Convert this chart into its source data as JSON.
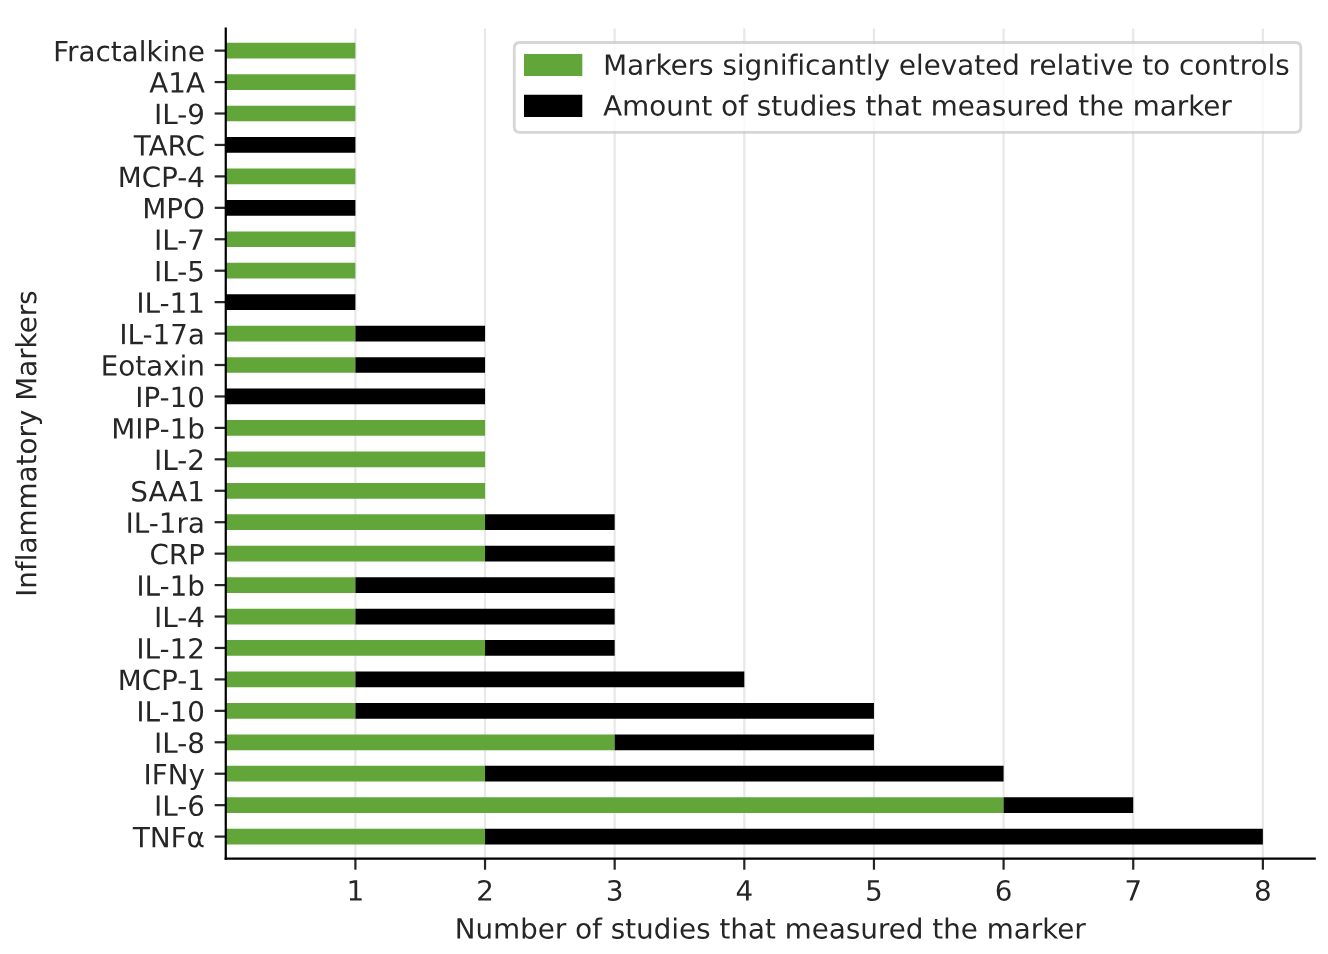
{
  "chart_data": {
    "type": "bar",
    "orientation": "horizontal",
    "stacked": true,
    "xlabel": "Number of studies that measured the marker",
    "ylabel": "Inflammatory Markers",
    "categories": [
      "Fractalkine",
      "A1A",
      "IL-9",
      "TARC",
      "MCP-4",
      "MPO",
      "IL-7",
      "IL-5",
      "IL-11",
      "IL-17a",
      "Eotaxin",
      "IP-10",
      "MIP-1b",
      "IL-2",
      "SAA1",
      "IL-1ra",
      "CRP",
      "IL-1b",
      "IL-4",
      "IL-12",
      "MCP-1",
      "IL-10",
      "IL-8",
      "IFNy",
      "IL-6",
      "TNFα"
    ],
    "series": [
      {
        "name": "Markers significantly elevated relative to controls",
        "color": "#62a63a",
        "values": [
          1,
          1,
          1,
          0,
          1,
          0,
          1,
          1,
          0,
          1,
          1,
          0,
          2,
          2,
          2,
          2,
          2,
          1,
          1,
          2,
          1,
          1,
          3,
          2,
          6,
          2
        ]
      },
      {
        "name": "Amount of studies that measured the marker",
        "color": "#000000",
        "values": [
          0,
          0,
          0,
          1,
          0,
          1,
          0,
          0,
          1,
          1,
          1,
          2,
          0,
          0,
          0,
          1,
          1,
          2,
          2,
          1,
          3,
          4,
          2,
          4,
          1,
          6
        ]
      }
    ],
    "xlim": [
      0,
      8.4
    ],
    "xticks": [
      1,
      2,
      3,
      4,
      5,
      6,
      7,
      8
    ],
    "grid": "x",
    "legend": "top right"
  }
}
